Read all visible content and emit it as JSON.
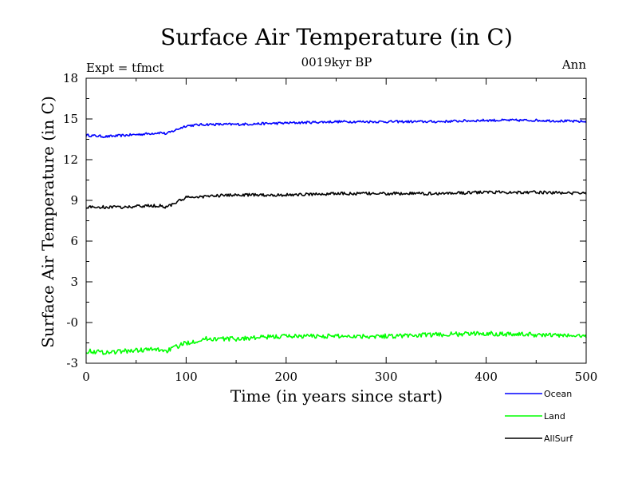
{
  "chart_data": {
    "type": "line",
    "title": "Surface Air Temperature (in C)",
    "subtitle": "0019kyr BP",
    "left_note": "Expt = tfmct",
    "right_note": "Ann",
    "xlabel": "Time (in years since start)",
    "ylabel": "Surface Air Temperature (in C)",
    "xlim": [
      0,
      500
    ],
    "ylim": [
      -3,
      18
    ],
    "xticks": [
      0,
      100,
      200,
      300,
      400,
      500
    ],
    "ytick_labels": [
      "18",
      "15",
      "12",
      "9",
      "6",
      "3",
      "-0",
      "-3"
    ],
    "ytick_values": [
      18,
      15,
      12,
      9,
      6,
      3,
      0,
      -3
    ],
    "grid": false,
    "legend_position": "bottom-right",
    "series": [
      {
        "name": "Ocean",
        "color": "#0000ff",
        "x": [
          0,
          20,
          40,
          60,
          75,
          80,
          100,
          120,
          150,
          200,
          250,
          300,
          350,
          400,
          450,
          500
        ],
        "y": [
          13.8,
          13.7,
          13.8,
          13.9,
          14.0,
          13.9,
          14.5,
          14.6,
          14.6,
          14.7,
          14.8,
          14.8,
          14.8,
          14.9,
          14.9,
          14.8
        ]
      },
      {
        "name": "Land",
        "color": "#00ff00",
        "x": [
          0,
          20,
          40,
          60,
          75,
          80,
          100,
          120,
          150,
          200,
          250,
          300,
          350,
          400,
          450,
          500
        ],
        "y": [
          -2.1,
          -2.2,
          -2.1,
          -2.0,
          -2.0,
          -2.1,
          -1.5,
          -1.2,
          -1.2,
          -1.0,
          -1.0,
          -1.0,
          -0.9,
          -0.8,
          -0.9,
          -1.0
        ]
      },
      {
        "name": "AllSurf",
        "color": "#000000",
        "x": [
          0,
          20,
          40,
          60,
          75,
          80,
          100,
          120,
          150,
          200,
          250,
          300,
          350,
          400,
          450,
          500
        ],
        "y": [
          8.5,
          8.5,
          8.5,
          8.6,
          8.6,
          8.5,
          9.2,
          9.3,
          9.4,
          9.4,
          9.5,
          9.5,
          9.5,
          9.6,
          9.6,
          9.5
        ]
      }
    ]
  }
}
